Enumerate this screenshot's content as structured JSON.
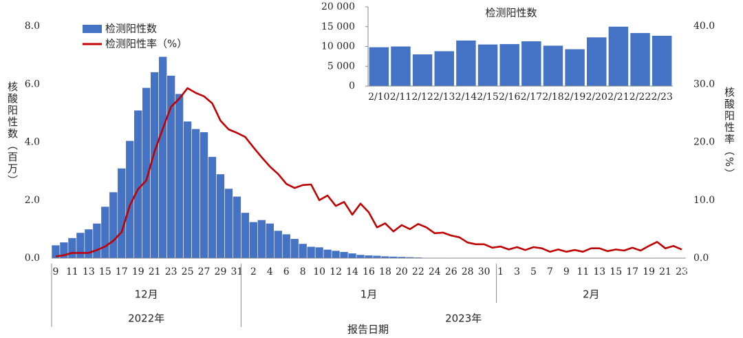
{
  "chart_data": [
    {
      "type": "combo",
      "categories": [
        9,
        null,
        11,
        null,
        13,
        null,
        15,
        null,
        17,
        null,
        19,
        null,
        21,
        null,
        23,
        null,
        25,
        null,
        27,
        null,
        29,
        null,
        31,
        null,
        2,
        null,
        4,
        null,
        6,
        null,
        8,
        null,
        10,
        null,
        12,
        null,
        14,
        null,
        16,
        null,
        18,
        null,
        20,
        null,
        22,
        null,
        24,
        null,
        26,
        null,
        28,
        null,
        30,
        null,
        1,
        null,
        3,
        null,
        5,
        null,
        7,
        null,
        9,
        null,
        11,
        null,
        13,
        null,
        15,
        null,
        17,
        null,
        19,
        null,
        21,
        null,
        23
      ],
      "x_groups": [
        "12月",
        "1月",
        "2月"
      ],
      "x_year_groups": [
        "2022年",
        "2023年"
      ],
      "xlabel": "报告日期",
      "ylabel": "核酸阳性数（百万）",
      "y2label": "核酸阳性率（%）",
      "ylim": [
        0,
        8
      ],
      "yticks": [
        {
          "value": 0,
          "label": "0.0"
        },
        {
          "value": 2,
          "label": "2.0"
        },
        {
          "value": 4,
          "label": "4.0"
        },
        {
          "value": 6,
          "label": "6.0"
        },
        {
          "value": 8,
          "label": "8.0"
        }
      ],
      "y2lim": [
        0,
        40
      ],
      "y2ticks": [
        {
          "value": 0,
          "label": "0.0"
        },
        {
          "value": 10,
          "label": "10.0"
        },
        {
          "value": 20,
          "label": "20.0"
        },
        {
          "value": 30,
          "label": "30.0"
        },
        {
          "value": 40,
          "label": "40.0"
        }
      ],
      "series": [
        {
          "name": "检测阳性数",
          "type": "bar",
          "color": "#4472c4",
          "values": [
            0.45,
            0.55,
            0.7,
            0.88,
            1.0,
            1.2,
            1.78,
            2.28,
            3.1,
            4.05,
            5.1,
            5.88,
            6.42,
            6.95,
            6.3,
            5.67,
            4.72,
            4.46,
            4.35,
            3.5,
            2.9,
            2.4,
            2.13,
            1.57,
            1.25,
            1.32,
            1.2,
            0.95,
            0.83,
            0.67,
            0.5,
            0.4,
            0.38,
            0.3,
            0.26,
            0.22,
            0.17,
            0.12,
            0.1,
            0.09,
            0.07,
            0.06,
            0.05,
            0.04,
            0.03,
            0.02,
            0.02,
            0.015,
            0.01,
            0.01,
            0.01,
            0.01,
            0.01,
            0.01,
            0.01,
            0.01,
            0.01,
            0.01,
            0.01,
            0.01,
            0.01,
            0.01,
            0.01,
            0.0098,
            0.01,
            0.008,
            0.0088,
            0.0115,
            0.0105,
            0.0106,
            0.0113,
            0.0102,
            0.0093,
            0.0123,
            0.015,
            0.0134,
            0.0127
          ]
        },
        {
          "name": "检测阳性率（%）",
          "type": "line",
          "axis": "y2",
          "color": "#c00000",
          "values": [
            0.3,
            0.5,
            0.9,
            0.9,
            0.9,
            1.4,
            2.0,
            3.0,
            4.5,
            9.1,
            11.9,
            13.4,
            18.4,
            22.3,
            26.1,
            27.5,
            29.3,
            28.5,
            27.9,
            26.7,
            23.7,
            22.2,
            21.6,
            20.9,
            19.1,
            17.4,
            15.8,
            14.5,
            12.8,
            12.1,
            12.6,
            12.7,
            10.0,
            10.8,
            9.0,
            9.7,
            7.5,
            9.4,
            7.9,
            5.3,
            6.0,
            4.6,
            5.7,
            5.0,
            5.9,
            5.3,
            4.3,
            4.4,
            3.9,
            3.6,
            2.7,
            2.4,
            2.4,
            1.8,
            2.0,
            1.5,
            1.9,
            1.4,
            1.9,
            1.7,
            1.1,
            1.5,
            1.1,
            1.4,
            1.1,
            1.7,
            1.7,
            1.2,
            1.5,
            1.3,
            1.8,
            1.3,
            2.1,
            2.8,
            1.7,
            2.1,
            1.5
          ]
        }
      ]
    },
    {
      "type": "bar",
      "title": "检测阳性数",
      "categories": [
        "2/10",
        "2/11",
        "2/12",
        "2/13",
        "2/14",
        "2/15",
        "2/16",
        "2/17",
        "2/18",
        "2/19",
        "2/20",
        "2/21",
        "2/22",
        "2/23"
      ],
      "values": [
        9800,
        10000,
        8000,
        8800,
        11500,
        10500,
        10600,
        11300,
        10200,
        9300,
        12300,
        15000,
        13400,
        12700
      ],
      "color": "#4472c4",
      "ylim": [
        0,
        20000
      ],
      "yticks": [
        0,
        {
          "value": 5000,
          "label": "5 000"
        },
        {
          "value": 10000,
          "label": "10 000"
        },
        {
          "value": 15000,
          "label": "15 000"
        },
        {
          "value": 20000,
          "label": "20 000"
        }
      ]
    }
  ]
}
